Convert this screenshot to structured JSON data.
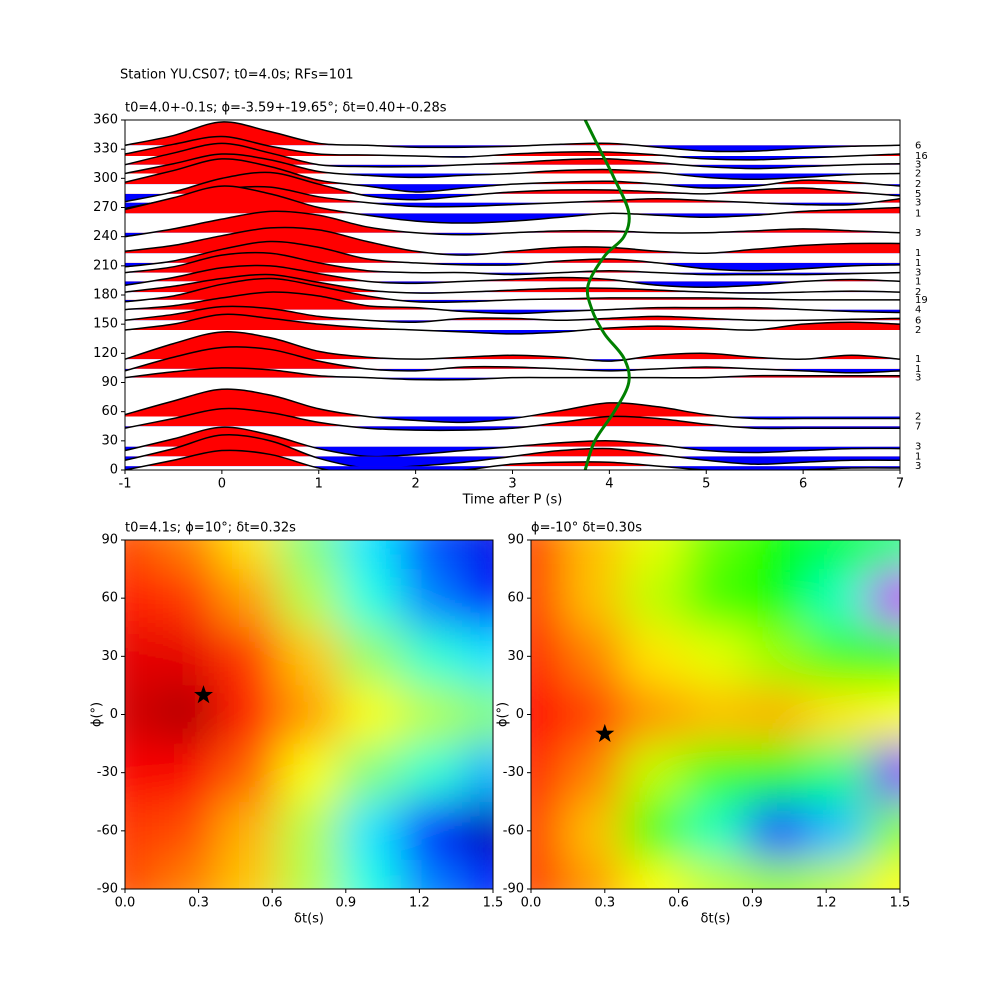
{
  "chart_data": [
    {
      "type": "wiggle",
      "suptitle": "Station YU.CS07; t0=4.0s; RFs=101",
      "title": "t0=4.0+-0.1s; ϕ=-3.59+-19.65°; δt=0.40+-0.28s",
      "xlabel": "Time after P (s)",
      "xlim": [
        -1,
        7
      ],
      "xticks": [
        -1,
        0,
        1,
        2,
        3,
        4,
        5,
        6,
        7
      ],
      "ylim": [
        0,
        360
      ],
      "yticks": [
        0,
        30,
        60,
        90,
        120,
        150,
        180,
        210,
        240,
        270,
        300,
        330,
        360
      ],
      "pos_color": "#ff0000",
      "neg_color": "#0000ff",
      "t": [
        -1,
        -0.5,
        0,
        0.5,
        1,
        1.5,
        2,
        2.5,
        3,
        3.5,
        4,
        4.5,
        5,
        5.5,
        6,
        6.5,
        7
      ],
      "traces": [
        {
          "baz": 334,
          "n": 6,
          "values": [
            0,
            10,
            24,
            14,
            2,
            0,
            -2,
            -2,
            -1,
            1,
            2,
            -2,
            -6,
            -6,
            -3,
            -1,
            0
          ]
        },
        {
          "baz": 323,
          "n": 16,
          "values": [
            2,
            12,
            20,
            10,
            2,
            1,
            0,
            -1,
            2,
            4,
            4,
            1,
            -3,
            -4,
            -2,
            0,
            2
          ]
        },
        {
          "baz": 314,
          "n": 3,
          "values": [
            0,
            12,
            22,
            12,
            0,
            -2,
            -2,
            0,
            2,
            5,
            6,
            2,
            -2,
            -4,
            -2,
            0,
            1
          ]
        },
        {
          "baz": 305,
          "n": 2,
          "values": [
            0,
            10,
            20,
            14,
            2,
            -2,
            -4,
            -2,
            0,
            3,
            4,
            1,
            -4,
            -6,
            -4,
            -1,
            0
          ]
        },
        {
          "baz": 294,
          "n": 2,
          "values": [
            2,
            14,
            26,
            18,
            4,
            -2,
            -8,
            -4,
            0,
            2,
            3,
            0,
            -4,
            -2,
            4,
            2,
            -2
          ]
        },
        {
          "baz": 284,
          "n": 5,
          "values": [
            -8,
            2,
            16,
            22,
            10,
            -2,
            -6,
            -2,
            2,
            4,
            4,
            2,
            0,
            4,
            6,
            2,
            -2
          ]
        },
        {
          "baz": 275,
          "n": 3,
          "values": [
            -6,
            4,
            14,
            16,
            6,
            0,
            -4,
            -4,
            -2,
            0,
            2,
            4,
            2,
            0,
            -2,
            -2,
            4
          ]
        },
        {
          "baz": 264,
          "n": 1,
          "values": [
            4,
            16,
            28,
            20,
            6,
            -2,
            -8,
            -10,
            -8,
            -4,
            0,
            -2,
            -4,
            -2,
            2,
            4,
            6
          ]
        },
        {
          "baz": 244,
          "n": 3,
          "values": [
            -4,
            4,
            14,
            22,
            18,
            6,
            0,
            -2,
            0,
            2,
            2,
            0,
            0,
            2,
            4,
            2,
            0
          ]
        },
        {
          "baz": 223,
          "n": 1,
          "values": [
            2,
            8,
            18,
            26,
            24,
            12,
            2,
            -2,
            2,
            6,
            6,
            2,
            0,
            4,
            8,
            10,
            10
          ]
        },
        {
          "baz": 213,
          "n": 1,
          "values": [
            -4,
            2,
            14,
            22,
            16,
            4,
            0,
            -2,
            -2,
            2,
            4,
            0,
            -6,
            -8,
            -6,
            -3,
            -2
          ]
        },
        {
          "baz": 203,
          "n": 3,
          "values": [
            0,
            6,
            18,
            20,
            10,
            2,
            0,
            0,
            -2,
            0,
            2,
            0,
            -2,
            -2,
            -2,
            -1,
            0
          ]
        },
        {
          "baz": 194,
          "n": 1,
          "values": [
            -4,
            4,
            14,
            16,
            8,
            0,
            -2,
            0,
            2,
            4,
            2,
            -4,
            -6,
            -4,
            0,
            2,
            0
          ]
        },
        {
          "baz": 183,
          "n": 2,
          "values": [
            0,
            6,
            14,
            18,
            10,
            2,
            -1,
            0,
            2,
            4,
            4,
            2,
            0,
            -1,
            0,
            1,
            0
          ]
        },
        {
          "baz": 175,
          "n": 19,
          "values": [
            -2,
            4,
            16,
            22,
            14,
            4,
            -2,
            -2,
            0,
            1,
            2,
            2,
            2,
            1,
            0,
            0,
            0
          ]
        },
        {
          "baz": 165,
          "n": 4,
          "values": [
            0,
            4,
            12,
            18,
            14,
            4,
            2,
            -2,
            -4,
            -2,
            0,
            2,
            2,
            2,
            0,
            -2,
            -3
          ]
        },
        {
          "baz": 154,
          "n": 6,
          "values": [
            0,
            6,
            14,
            12,
            4,
            0,
            -2,
            2,
            2,
            0,
            2,
            4,
            2,
            0,
            0,
            1,
            2
          ]
        },
        {
          "baz": 144,
          "n": 2,
          "values": [
            0,
            6,
            16,
            12,
            6,
            2,
            0,
            -2,
            -4,
            -2,
            2,
            4,
            2,
            0,
            6,
            8,
            6
          ]
        },
        {
          "baz": 114,
          "n": 1,
          "values": [
            0,
            16,
            28,
            22,
            8,
            2,
            0,
            2,
            4,
            2,
            -2,
            4,
            6,
            2,
            0,
            4,
            0
          ]
        },
        {
          "baz": 104,
          "n": 1,
          "values": [
            -2,
            12,
            22,
            20,
            8,
            0,
            -2,
            2,
            2,
            0,
            -2,
            0,
            2,
            0,
            -2,
            -4,
            -2
          ]
        },
        {
          "baz": 95,
          "n": 3,
          "values": [
            0,
            6,
            10,
            8,
            2,
            0,
            -2,
            -2,
            0,
            0,
            0,
            0,
            0,
            2,
            2,
            2,
            2
          ]
        },
        {
          "baz": 55,
          "n": 2,
          "values": [
            2,
            16,
            28,
            22,
            8,
            0,
            -4,
            -6,
            -2,
            6,
            14,
            10,
            2,
            -2,
            -2,
            -2,
            -2
          ]
        },
        {
          "baz": 45,
          "n": 7,
          "values": [
            -2,
            8,
            18,
            14,
            4,
            -2,
            -4,
            -4,
            -2,
            4,
            10,
            8,
            2,
            -2,
            -2,
            -2,
            -2
          ]
        },
        {
          "baz": 24,
          "n": 3,
          "values": [
            -4,
            8,
            20,
            12,
            -2,
            -10,
            -8,
            -4,
            0,
            4,
            6,
            2,
            -4,
            -6,
            -4,
            -2,
            -2
          ]
        },
        {
          "baz": 14,
          "n": 1,
          "values": [
            -4,
            8,
            22,
            16,
            -2,
            -12,
            -10,
            -6,
            0,
            6,
            8,
            2,
            -4,
            -8,
            -6,
            -4,
            -4
          ]
        },
        {
          "baz": 4,
          "n": 3,
          "values": [
            -4,
            6,
            16,
            12,
            -2,
            -10,
            -8,
            -4,
            2,
            4,
            4,
            0,
            -4,
            -6,
            -4,
            -2,
            -2
          ]
        }
      ],
      "curve": {
        "color": "#008000",
        "x": [
          3.75,
          3.9,
          4.05,
          4.2,
          4.15,
          3.95,
          3.78,
          3.82,
          3.95,
          4.15,
          4.2,
          4.05,
          3.85,
          3.75
        ],
        "y": [
          360,
          330,
          300,
          265,
          240,
          220,
          190,
          165,
          140,
          115,
          90,
          60,
          30,
          0
        ]
      }
    },
    {
      "type": "heatmap",
      "title": "t0=4.1s; ϕ=10°; δt=0.32s",
      "xlabel": "δt(s)",
      "ylabel": "ϕ(°)",
      "colormap": "jet",
      "xlim": [
        0,
        1.5
      ],
      "xticks": [
        {
          "value": 0,
          "label": "0.0"
        },
        0.3,
        0.6,
        0.9,
        1.2,
        1.5
      ],
      "ylim": [
        -90,
        90
      ],
      "yticks": [
        -90,
        -60,
        -30,
        0,
        30,
        60,
        90
      ],
      "x": [
        0,
        0.25,
        0.5,
        0.75,
        1,
        1.25,
        1.5
      ],
      "y": [
        90,
        60,
        30,
        0,
        -30,
        -60,
        -90
      ],
      "z": [
        [
          0.8,
          0.75,
          0.65,
          0.5,
          0.35,
          0.2,
          0.1
        ],
        [
          0.85,
          0.82,
          0.72,
          0.55,
          0.4,
          0.25,
          0.12
        ],
        [
          0.9,
          0.9,
          0.82,
          0.68,
          0.52,
          0.42,
          0.35
        ],
        [
          0.92,
          0.95,
          0.85,
          0.72,
          0.62,
          0.55,
          0.5
        ],
        [
          0.88,
          0.88,
          0.78,
          0.62,
          0.5,
          0.42,
          0.3
        ],
        [
          0.82,
          0.8,
          0.7,
          0.55,
          0.35,
          0.15,
          0.05
        ],
        [
          0.8,
          0.75,
          0.68,
          0.55,
          0.4,
          0.25,
          0.15
        ]
      ],
      "star": {
        "x": 0.32,
        "y": 10
      }
    },
    {
      "type": "heatmap",
      "title": "ϕ=-10° δt=0.30s",
      "xlabel": "δt(s)",
      "ylabel": "ϕ(°)",
      "colormap": "hsv",
      "xlim": [
        0,
        1.5
      ],
      "xticks": [
        {
          "value": 0,
          "label": "0.0"
        },
        0.3,
        0.6,
        0.9,
        1.2,
        1.5
      ],
      "ylim": [
        -90,
        90
      ],
      "yticks": [
        -90,
        -60,
        -30,
        0,
        30,
        60,
        90
      ],
      "x": [
        0,
        0.25,
        0.5,
        0.75,
        1,
        1.25,
        1.5
      ],
      "y": [
        90,
        60,
        30,
        0,
        -30,
        -60,
        -90
      ],
      "z": [
        [
          0.95,
          0.85,
          0.78,
          0.68,
          0.6,
          0.55,
          0.5
        ],
        [
          0.95,
          0.85,
          0.75,
          0.65,
          0.6,
          0.45,
          0.05
        ],
        [
          0.97,
          0.9,
          0.82,
          0.78,
          0.72,
          0.65,
          0.6
        ],
        [
          1,
          0.95,
          0.88,
          0.85,
          0.86,
          0.82,
          0.8
        ],
        [
          0.97,
          0.9,
          0.75,
          0.65,
          0.62,
          0.5,
          0.1
        ],
        [
          0.95,
          0.85,
          0.65,
          0.45,
          0.25,
          0.35,
          0.7
        ],
        [
          0.95,
          0.88,
          0.8,
          0.75,
          0.72,
          0.75,
          0.8
        ]
      ],
      "star": {
        "x": 0.3,
        "y": -10
      }
    }
  ]
}
